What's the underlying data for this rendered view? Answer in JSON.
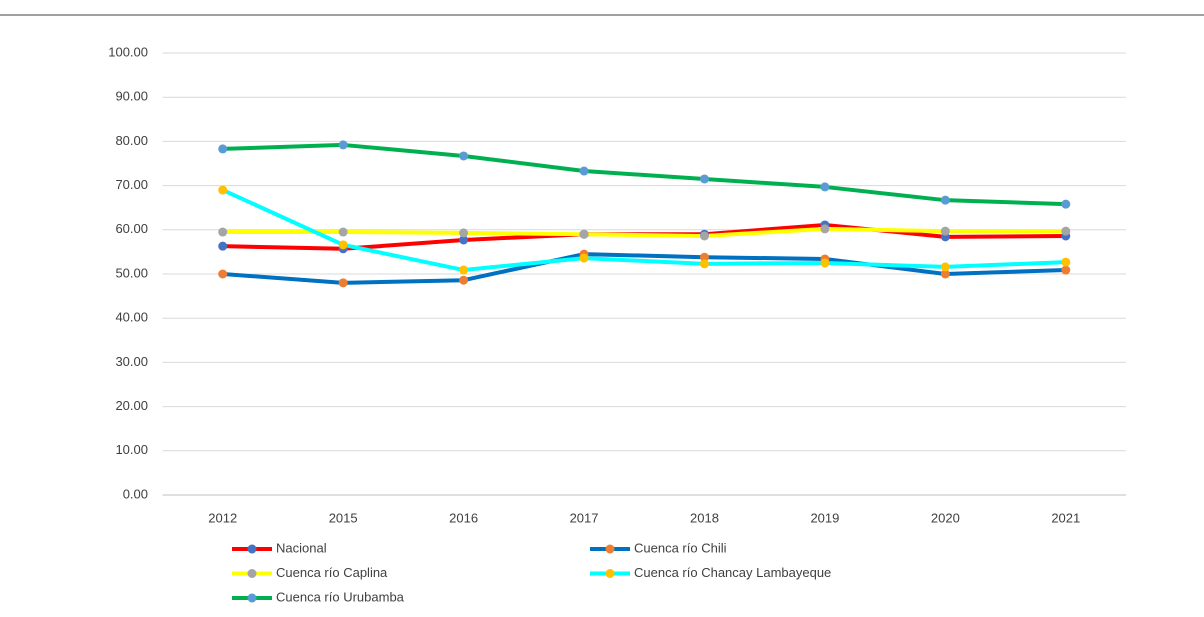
{
  "chart_data": {
    "type": "line",
    "categories": [
      "2012",
      "2015",
      "2016",
      "2017",
      "2018",
      "2019",
      "2020",
      "2021"
    ],
    "series": [
      {
        "name": "Nacional",
        "color": "#ff0000",
        "marker_color": "#4472c4",
        "values": [
          56.3,
          55.7,
          57.7,
          59.0,
          59.0,
          61.1,
          58.4,
          58.6
        ]
      },
      {
        "name": "Cuenca río Chili",
        "color": "#0070c0",
        "marker_color": "#ed7d31",
        "values": [
          50.0,
          48.0,
          48.6,
          54.5,
          53.8,
          53.4,
          50.0,
          50.9
        ]
      },
      {
        "name": "Cuenca río Caplina",
        "color": "#ffff00",
        "marker_color": "#a5a5a5",
        "values": [
          59.5,
          59.5,
          59.3,
          59.0,
          58.6,
          60.2,
          59.7,
          59.7
        ]
      },
      {
        "name": "Cuenca río Chancay Lambayeque",
        "color": "#00ffff",
        "marker_color": "#ffc000",
        "values": [
          69.0,
          56.6,
          50.9,
          53.6,
          52.3,
          52.5,
          51.6,
          52.7
        ]
      },
      {
        "name": "Cuenca río Urubamba",
        "color": "#00b050",
        "marker_color": "#5b9bd5",
        "values": [
          78.3,
          79.2,
          76.7,
          73.3,
          71.5,
          69.7,
          66.7,
          65.8
        ]
      }
    ],
    "ylim": [
      0,
      100
    ],
    "yticks": [
      {
        "value": 0,
        "label": "0.00"
      },
      {
        "value": 10,
        "label": "10.00"
      },
      {
        "value": 20,
        "label": "20.00"
      },
      {
        "value": 30,
        "label": "30.00"
      },
      {
        "value": 40,
        "label": "40.00"
      },
      {
        "value": 50,
        "label": "50.00"
      },
      {
        "value": 60,
        "label": "60.00"
      },
      {
        "value": 70,
        "label": "70.00"
      },
      {
        "value": 80,
        "label": "80.00"
      },
      {
        "value": 90,
        "label": "90.00"
      },
      {
        "value": 100,
        "label": "100.00"
      }
    ],
    "grid": true,
    "legend": "bottom"
  }
}
